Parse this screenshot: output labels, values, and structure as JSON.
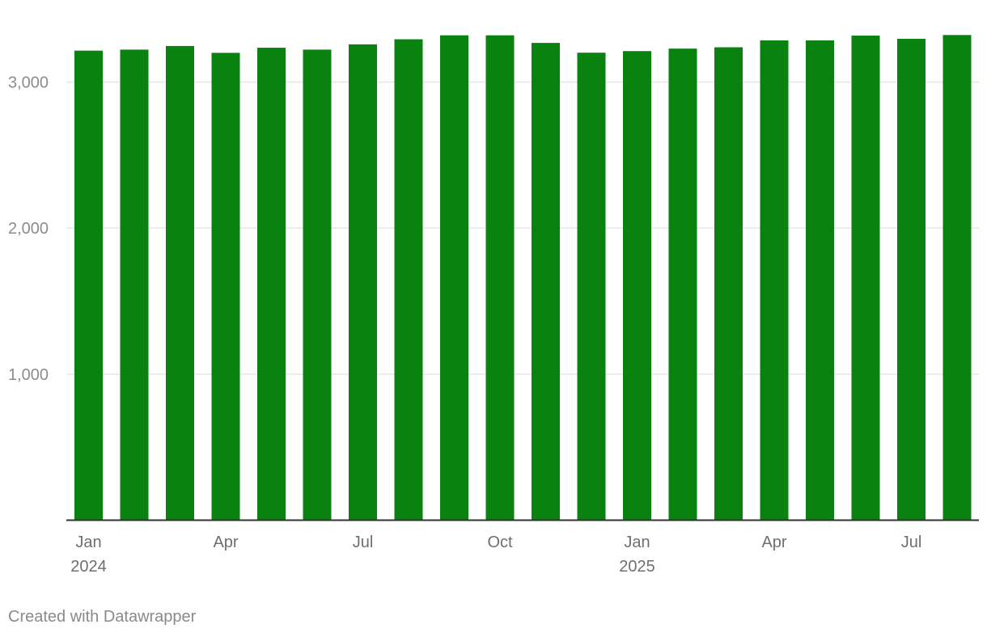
{
  "chart_data": {
    "type": "bar",
    "categories": [
      "Jan 2024",
      "Feb 2024",
      "Mar 2024",
      "Apr 2024",
      "May 2024",
      "Jun 2024",
      "Jul 2024",
      "Aug 2024",
      "Sep 2024",
      "Oct 2024",
      "Nov 2024",
      "Dec 2024",
      "Jan 2025",
      "Feb 2025",
      "Mar 2025",
      "Apr 2025",
      "May 2025",
      "Jun 2025",
      "Jul 2025",
      "Aug 2025"
    ],
    "values": [
      3215,
      3222,
      3247,
      3200,
      3235,
      3222,
      3258,
      3293,
      3320,
      3320,
      3268,
      3201,
      3212,
      3229,
      3238,
      3285,
      3285,
      3318,
      3296,
      3322
    ],
    "ylim": [
      0,
      3400
    ],
    "yticks": [
      {
        "value": 1000,
        "label": "1,000"
      },
      {
        "value": 2000,
        "label": "2,000"
      },
      {
        "value": 3000,
        "label": "3,000"
      }
    ],
    "xticks": [
      {
        "index": 0,
        "label": "Jan",
        "year": "2024"
      },
      {
        "index": 3,
        "label": "Apr"
      },
      {
        "index": 6,
        "label": "Jul"
      },
      {
        "index": 9,
        "label": "Oct"
      },
      {
        "index": 12,
        "label": "Jan",
        "year": "2025"
      },
      {
        "index": 15,
        "label": "Apr"
      },
      {
        "index": 18,
        "label": "Jul"
      }
    ],
    "bar_color": "#0a8210",
    "grid": true,
    "legend": "none"
  },
  "footer": {
    "credit": "Created with Datawrapper"
  }
}
